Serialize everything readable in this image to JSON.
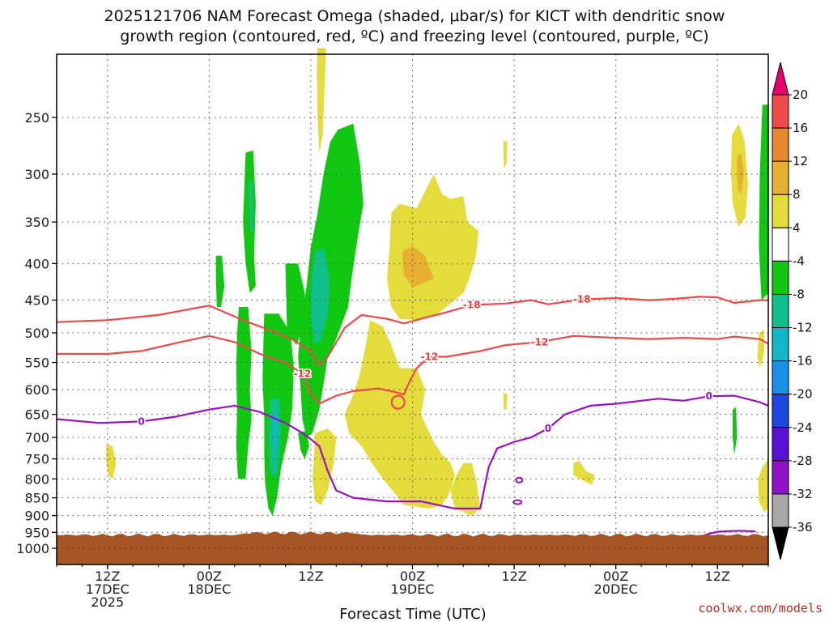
{
  "chart_data": {
    "type": "heatmap",
    "title_lines": [
      "2025121706 NAM Forecast Omega (shaded, μbar/s) for KICT with dendritic snow",
      "growth region (contoured, red, ºC) and freezing level (contoured, purple, ºC)"
    ],
    "xlabel": "Forecast Time (UTC)",
    "ylabel": "",
    "credit": "coolwx.com/models",
    "x_axis": {
      "units": "hours since 2025-12-17 06Z",
      "range": [
        0,
        84
      ],
      "ticks": [
        {
          "h": 6,
          "lines": [
            "12Z",
            "17DEC",
            "2025"
          ]
        },
        {
          "h": 18,
          "lines": [
            "00Z",
            "18DEC"
          ]
        },
        {
          "h": 30,
          "lines": [
            "12Z"
          ]
        },
        {
          "h": 42,
          "lines": [
            "00Z",
            "19DEC"
          ]
        },
        {
          "h": 54,
          "lines": [
            "12Z"
          ]
        },
        {
          "h": 66,
          "lines": [
            "00Z",
            "20DEC"
          ]
        },
        {
          "h": 78,
          "lines": [
            "12Z"
          ]
        }
      ]
    },
    "y_axis": {
      "units": "hPa",
      "scale": "log-inverted",
      "range": [
        200,
        1050
      ],
      "ticks": [
        250,
        300,
        350,
        400,
        450,
        500,
        550,
        600,
        650,
        700,
        750,
        800,
        850,
        900,
        950,
        1000
      ],
      "grid": true
    },
    "colorbar": {
      "labels": [
        "20",
        "16",
        "12",
        "8",
        "4",
        "-4",
        "-8",
        "-12",
        "-16",
        "-20",
        "-24",
        "-28",
        "-32",
        "-36"
      ],
      "colors": [
        "#e8006c",
        "#f04a4a",
        "#e88830",
        "#e8b030",
        "#e4dc3a",
        "#ffffff",
        "#10c810",
        "#10c08c",
        "#10b8c8",
        "#1890ec",
        "#1c46e0",
        "#5a10d8",
        "#9010c8",
        "#a8a8a8",
        "#000000"
      ]
    },
    "terrain": {
      "color": "#a65524",
      "top_hPa": 958
    },
    "shaded_regions": [
      {
        "sign": "positive",
        "range": [
          4,
          8
        ],
        "center_h": 31.2,
        "center_hPa": 200,
        "label": "yellow band top"
      },
      {
        "sign": "positive",
        "range": [
          4,
          8
        ],
        "center_h": 43,
        "center_hPa": 360
      },
      {
        "sign": "positive",
        "range": [
          8,
          12
        ],
        "center_h": 43,
        "center_hPa": 390
      },
      {
        "sign": "positive",
        "range": [
          4,
          8
        ],
        "center_h": 40,
        "center_hPa": 660
      },
      {
        "sign": "positive",
        "range": [
          4,
          8
        ],
        "center_h": 43,
        "center_hPa": 800
      },
      {
        "sign": "positive",
        "range": [
          8,
          12
        ],
        "center_h": 81,
        "center_hPa": 300
      },
      {
        "sign": "negative",
        "range": [
          -8,
          -4
        ],
        "center_h": 22,
        "center_hPa": 550
      },
      {
        "sign": "negative",
        "range": [
          -8,
          -4
        ],
        "center_h": 34,
        "center_hPa": 350
      },
      {
        "sign": "negative",
        "range": [
          -12,
          -8
        ],
        "center_h": 32.5,
        "center_hPa": 470
      },
      {
        "sign": "negative",
        "range": [
          -16,
          -12
        ],
        "center_h": 27,
        "center_hPa": 700
      },
      {
        "sign": "negative",
        "range": [
          -8,
          -4
        ],
        "center_h": 84,
        "center_hPa": 330
      }
    ],
    "contours": [
      {
        "name": "-18 °C",
        "color": "#f04848",
        "label": "-18",
        "points_h_hPa": [
          [
            0,
            483
          ],
          [
            6,
            480
          ],
          [
            12,
            472
          ],
          [
            18,
            458
          ],
          [
            22,
            480
          ],
          [
            26,
            500
          ],
          [
            28,
            512
          ],
          [
            30,
            530
          ],
          [
            31,
            555
          ],
          [
            32,
            540
          ],
          [
            34,
            492
          ],
          [
            36,
            472
          ],
          [
            39,
            478
          ],
          [
            41,
            485
          ],
          [
            43,
            478
          ],
          [
            46,
            468
          ],
          [
            49,
            457
          ],
          [
            53,
            455
          ],
          [
            56,
            450
          ],
          [
            58,
            456
          ],
          [
            62,
            449
          ],
          [
            66,
            447
          ],
          [
            70,
            450
          ],
          [
            73,
            448
          ],
          [
            76,
            445
          ],
          [
            78,
            446
          ],
          [
            80,
            454
          ],
          [
            83,
            450
          ],
          [
            84,
            450
          ]
        ]
      },
      {
        "name": "-12 °C",
        "color": "#f04848",
        "label": "-12",
        "points_h_hPa": [
          [
            0,
            535
          ],
          [
            6,
            535
          ],
          [
            10,
            530
          ],
          [
            14,
            517
          ],
          [
            18,
            505
          ],
          [
            21,
            515
          ],
          [
            24,
            535
          ],
          [
            27,
            550
          ],
          [
            29,
            570
          ],
          [
            30,
            608
          ],
          [
            31,
            628
          ],
          [
            33,
            612
          ],
          [
            35,
            603
          ],
          [
            38,
            598
          ],
          [
            40,
            605
          ],
          [
            41,
            610
          ],
          [
            41.5,
            590
          ],
          [
            42.5,
            560
          ],
          [
            44,
            540
          ],
          [
            46,
            540
          ],
          [
            50,
            530
          ],
          [
            53,
            520
          ],
          [
            57,
            515
          ],
          [
            61,
            505
          ],
          [
            66,
            508
          ],
          [
            70,
            510
          ],
          [
            74,
            508
          ],
          [
            78,
            510
          ],
          [
            80,
            506
          ],
          [
            83,
            510
          ],
          [
            84,
            518
          ]
        ]
      },
      {
        "name": "0 °C freezing level",
        "color": "#9a10c8",
        "label": "0",
        "points_h_hPa": [
          [
            0,
            660
          ],
          [
            5,
            668
          ],
          [
            10,
            665
          ],
          [
            14,
            655
          ],
          [
            18,
            640
          ],
          [
            21,
            632
          ],
          [
            24,
            645
          ],
          [
            27,
            668
          ],
          [
            29,
            690
          ],
          [
            30,
            704
          ],
          [
            31,
            720
          ],
          [
            32,
            780
          ],
          [
            33,
            830
          ],
          [
            35,
            850
          ],
          [
            39,
            860
          ],
          [
            43,
            860
          ],
          [
            47,
            880
          ],
          [
            50,
            880
          ],
          [
            51,
            770
          ],
          [
            52,
            725
          ],
          [
            54,
            710
          ],
          [
            56,
            700
          ],
          [
            58,
            680
          ],
          [
            60,
            650
          ],
          [
            63,
            632
          ],
          [
            66,
            628
          ],
          [
            69,
            622
          ],
          [
            71,
            618
          ],
          [
            74,
            622
          ],
          [
            77,
            613
          ],
          [
            80,
            612
          ],
          [
            83,
            625
          ],
          [
            84,
            632
          ]
        ]
      }
    ]
  }
}
